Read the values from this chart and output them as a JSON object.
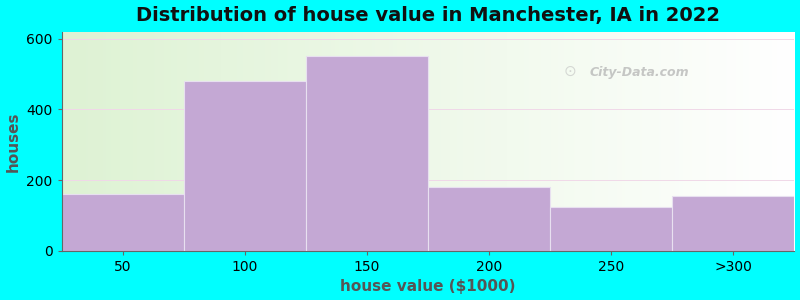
{
  "title": "Distribution of house value in Manchester, IA in 2022",
  "xlabel": "house value ($1000)",
  "ylabel": "houses",
  "bar_labels": [
    "50",
    "100",
    "150",
    "200",
    "250",
    ">300"
  ],
  "bar_heights": [
    160,
    480,
    550,
    180,
    125,
    155
  ],
  "bar_color": "#c4a8d4",
  "bar_edge_color": "#e8e0f0",
  "ylim": [
    0,
    620
  ],
  "yticks": [
    0,
    200,
    400,
    600
  ],
  "background_color": "#00ffff",
  "title_fontsize": 14,
  "axis_label_fontsize": 11,
  "tick_fontsize": 10,
  "watermark_text": "City-Data.com",
  "figsize": [
    8.0,
    3.0
  ],
  "dpi": 100
}
